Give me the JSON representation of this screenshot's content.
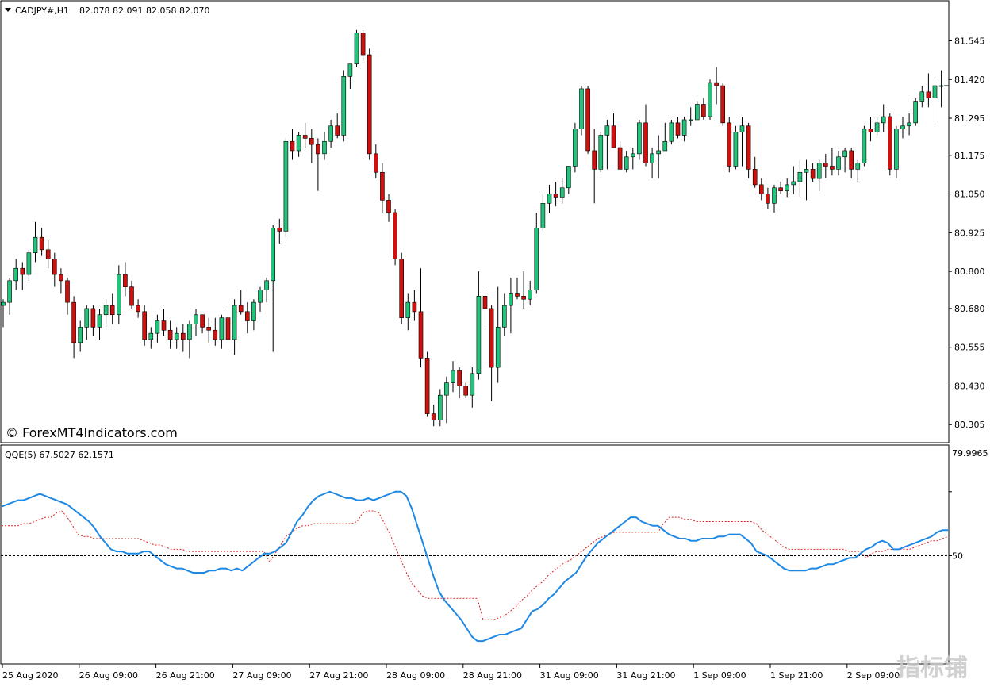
{
  "main": {
    "header": {
      "symbol": "CADJPY#,H1",
      "ohlc": "82.078 82.091 82.058 82.070"
    },
    "watermark": "© ForexMT4Indicators.com",
    "price_ticks": [
      "81.545",
      "81.420",
      "81.295",
      "81.175",
      "81.050",
      "80.925",
      "80.800",
      "80.680",
      "80.555",
      "80.430",
      "80.305"
    ]
  },
  "indicator": {
    "header": "QQE(5) 67.5027 62.1571",
    "ticks": [
      "79.9965",
      "50"
    ]
  },
  "time_labels": [
    "25 Aug 2020",
    "26 Aug 09:00",
    "26 Aug 21:00",
    "27 Aug 09:00",
    "27 Aug 21:00",
    "28 Aug 09:00",
    "28 Aug 21:00",
    "31 Aug 09:00",
    "31 Aug 21:00",
    "1 Sep 09:00",
    "1 Sep 21:00",
    "2 Sep 09:00"
  ],
  "corner_logo": "指标铺",
  "colors": {
    "bull": "#22c37a",
    "bear": "#d0100c",
    "qqe_fast": "#1e88e5",
    "qqe_slow": "#e02020",
    "axis": "#000000"
  },
  "chart_data": [
    {
      "type": "candlestick",
      "title": "CADJPY#,H1",
      "ylim": [
        80.28,
        81.6
      ],
      "ohlc": [
        [
          80.69,
          80.71,
          80.62,
          80.7
        ],
        [
          80.7,
          80.78,
          80.66,
          80.77
        ],
        [
          80.77,
          80.84,
          80.74,
          80.81
        ],
        [
          80.81,
          80.83,
          80.74,
          80.79
        ],
        [
          80.79,
          80.87,
          80.77,
          80.86
        ],
        [
          80.86,
          80.96,
          80.83,
          80.91
        ],
        [
          80.91,
          80.94,
          80.85,
          80.87
        ],
        [
          80.87,
          80.9,
          80.81,
          80.84
        ],
        [
          80.84,
          80.86,
          80.75,
          80.79
        ],
        [
          80.79,
          80.81,
          80.73,
          80.77
        ],
        [
          80.77,
          80.78,
          80.66,
          80.7
        ],
        [
          80.7,
          80.72,
          80.52,
          80.57
        ],
        [
          80.57,
          80.64,
          80.54,
          80.62
        ],
        [
          80.62,
          80.69,
          80.58,
          80.68
        ],
        [
          80.68,
          80.69,
          80.59,
          80.62
        ],
        [
          80.62,
          80.68,
          80.58,
          80.66
        ],
        [
          80.66,
          80.71,
          80.62,
          80.69
        ],
        [
          80.69,
          80.73,
          80.63,
          80.66
        ],
        [
          80.66,
          80.82,
          80.63,
          80.79
        ],
        [
          80.79,
          80.83,
          80.72,
          80.75
        ],
        [
          80.75,
          80.77,
          80.68,
          80.69
        ],
        [
          80.69,
          80.71,
          80.65,
          80.67
        ],
        [
          80.67,
          80.69,
          80.56,
          80.58
        ],
        [
          80.58,
          80.62,
          80.55,
          80.6
        ],
        [
          80.6,
          80.66,
          80.57,
          80.64
        ],
        [
          80.64,
          80.68,
          80.59,
          80.61
        ],
        [
          80.61,
          80.64,
          80.55,
          80.58
        ],
        [
          80.58,
          80.62,
          80.55,
          80.6
        ],
        [
          80.6,
          80.63,
          80.54,
          80.58
        ],
        [
          80.58,
          80.64,
          80.52,
          80.63
        ],
        [
          80.63,
          80.68,
          80.59,
          80.66
        ],
        [
          80.66,
          80.66,
          80.6,
          80.62
        ],
        [
          80.62,
          80.65,
          80.57,
          80.61
        ],
        [
          80.61,
          80.65,
          80.56,
          80.58
        ],
        [
          80.58,
          80.66,
          80.55,
          80.65
        ],
        [
          80.65,
          80.68,
          80.59,
          80.58
        ],
        [
          80.58,
          80.71,
          80.53,
          80.69
        ],
        [
          80.69,
          80.74,
          80.66,
          80.67
        ],
        [
          80.67,
          80.7,
          80.6,
          80.64
        ],
        [
          80.64,
          80.71,
          80.61,
          80.7
        ],
        [
          80.7,
          80.75,
          80.67,
          80.74
        ],
        [
          80.74,
          80.78,
          80.7,
          80.77
        ],
        [
          80.77,
          80.95,
          80.54,
          80.94
        ],
        [
          80.94,
          80.97,
          80.89,
          80.93
        ],
        [
          80.93,
          81.23,
          80.91,
          81.22
        ],
        [
          81.22,
          81.26,
          81.16,
          81.19
        ],
        [
          81.19,
          81.25,
          81.17,
          81.24
        ],
        [
          81.24,
          81.28,
          81.2,
          81.23
        ],
        [
          81.23,
          81.26,
          81.15,
          81.21
        ],
        [
          81.21,
          81.23,
          81.06,
          81.18
        ],
        [
          81.18,
          81.25,
          81.16,
          81.22
        ],
        [
          81.22,
          81.29,
          81.2,
          81.27
        ],
        [
          81.27,
          81.31,
          81.23,
          81.24
        ],
        [
          81.24,
          81.45,
          81.22,
          81.43
        ],
        [
          81.43,
          81.47,
          81.39,
          81.47
        ],
        [
          81.47,
          81.58,
          81.46,
          81.57
        ],
        [
          81.57,
          81.58,
          81.48,
          81.5
        ],
        [
          81.5,
          81.52,
          81.16,
          81.18
        ],
        [
          81.18,
          81.21,
          81.1,
          81.12
        ],
        [
          81.12,
          81.15,
          80.99,
          81.03
        ],
        [
          81.03,
          81.05,
          80.96,
          80.99
        ],
        [
          80.99,
          81.0,
          80.82,
          80.84
        ],
        [
          80.84,
          80.86,
          80.63,
          80.65
        ],
        [
          80.65,
          80.73,
          80.61,
          80.7
        ],
        [
          80.7,
          80.74,
          80.64,
          80.67
        ],
        [
          80.67,
          80.81,
          80.49,
          80.52
        ],
        [
          80.52,
          80.54,
          80.33,
          80.34
        ],
        [
          80.34,
          80.37,
          80.3,
          80.32
        ],
        [
          80.32,
          80.42,
          80.3,
          80.4
        ],
        [
          80.4,
          80.46,
          80.31,
          80.44
        ],
        [
          80.44,
          80.51,
          80.41,
          80.48
        ],
        [
          80.48,
          80.49,
          80.39,
          80.43
        ],
        [
          80.43,
          80.44,
          80.39,
          80.4
        ],
        [
          80.4,
          80.49,
          80.36,
          80.47
        ],
        [
          80.47,
          80.8,
          80.45,
          80.72
        ],
        [
          80.72,
          80.74,
          80.62,
          80.68
        ],
        [
          80.68,
          80.69,
          80.38,
          80.49
        ],
        [
          80.49,
          80.75,
          80.44,
          80.62
        ],
        [
          80.62,
          80.73,
          80.59,
          80.69
        ],
        [
          80.69,
          80.78,
          80.6,
          80.73
        ],
        [
          80.73,
          80.78,
          80.71,
          80.72
        ],
        [
          80.72,
          80.8,
          80.68,
          80.71
        ],
        [
          80.71,
          80.77,
          80.69,
          80.74
        ],
        [
          80.74,
          80.99,
          80.73,
          80.94
        ],
        [
          80.94,
          81.05,
          80.93,
          81.02
        ],
        [
          81.02,
          81.08,
          80.99,
          81.05
        ],
        [
          81.05,
          81.09,
          81.01,
          81.04
        ],
        [
          81.04,
          81.1,
          81.02,
          81.07
        ],
        [
          81.07,
          81.14,
          81.05,
          81.14
        ],
        [
          81.14,
          81.28,
          81.12,
          81.26
        ],
        [
          81.26,
          81.4,
          81.24,
          81.39
        ],
        [
          81.39,
          81.4,
          81.18,
          81.19
        ],
        [
          81.19,
          81.26,
          81.02,
          81.13
        ],
        [
          81.13,
          81.25,
          81.12,
          81.24
        ],
        [
          81.24,
          81.29,
          81.13,
          81.27
        ],
        [
          81.27,
          81.31,
          81.2,
          81.2
        ],
        [
          81.2,
          81.22,
          81.13,
          81.13
        ],
        [
          81.13,
          81.19,
          81.12,
          81.17
        ],
        [
          81.17,
          81.2,
          81.13,
          81.18
        ],
        [
          81.18,
          81.29,
          81.16,
          81.28
        ],
        [
          81.28,
          81.34,
          81.14,
          81.15
        ],
        [
          81.15,
          81.2,
          81.1,
          81.18
        ],
        [
          81.18,
          81.24,
          81.1,
          81.19
        ],
        [
          81.19,
          81.28,
          81.19,
          81.22
        ],
        [
          81.22,
          81.29,
          81.21,
          81.28
        ],
        [
          81.28,
          81.3,
          81.23,
          81.24
        ],
        [
          81.24,
          81.3,
          81.22,
          81.29
        ],
        [
          81.29,
          81.33,
          81.27,
          81.29
        ],
        [
          81.29,
          81.35,
          81.29,
          81.34
        ],
        [
          81.34,
          81.36,
          81.29,
          81.3
        ],
        [
          81.3,
          81.42,
          81.29,
          81.41
        ],
        [
          81.41,
          81.46,
          81.34,
          81.4
        ],
        [
          81.4,
          81.41,
          81.27,
          81.28
        ],
        [
          81.28,
          81.3,
          81.12,
          81.14
        ],
        [
          81.14,
          81.27,
          81.13,
          81.25
        ],
        [
          81.25,
          81.3,
          81.14,
          81.27
        ],
        [
          81.27,
          81.28,
          81.1,
          81.13
        ],
        [
          81.13,
          81.17,
          81.07,
          81.08
        ],
        [
          81.08,
          81.1,
          81.03,
          81.05
        ],
        [
          81.05,
          81.07,
          81.0,
          81.02
        ],
        [
          81.02,
          81.08,
          80.99,
          81.07
        ],
        [
          81.07,
          81.09,
          81.05,
          81.06
        ],
        [
          81.06,
          81.1,
          81.04,
          81.08
        ],
        [
          81.08,
          81.14,
          81.05,
          81.09
        ],
        [
          81.09,
          81.16,
          81.04,
          81.12
        ],
        [
          81.12,
          81.16,
          81.03,
          81.13
        ],
        [
          81.13,
          81.15,
          81.09,
          81.1
        ],
        [
          81.1,
          81.16,
          81.06,
          81.15
        ],
        [
          81.15,
          81.18,
          81.1,
          81.14
        ],
        [
          81.14,
          81.2,
          81.11,
          81.13
        ],
        [
          81.13,
          81.19,
          81.11,
          81.17
        ],
        [
          81.17,
          81.2,
          81.12,
          81.19
        ],
        [
          81.19,
          81.2,
          81.1,
          81.13
        ],
        [
          81.13,
          81.16,
          81.09,
          81.15
        ],
        [
          81.15,
          81.27,
          81.14,
          81.26
        ],
        [
          81.26,
          81.3,
          81.22,
          81.25
        ],
        [
          81.25,
          81.3,
          81.24,
          81.28
        ],
        [
          81.28,
          81.34,
          81.25,
          81.3
        ],
        [
          81.3,
          81.31,
          81.11,
          81.13
        ],
        [
          81.13,
          81.27,
          81.1,
          81.26
        ],
        [
          81.26,
          81.3,
          81.23,
          81.27
        ],
        [
          81.27,
          81.31,
          81.24,
          81.28
        ],
        [
          81.28,
          81.36,
          81.27,
          81.35
        ],
        [
          81.35,
          81.4,
          81.33,
          81.38
        ],
        [
          81.38,
          81.44,
          81.33,
          81.36
        ],
        [
          81.36,
          81.43,
          81.28,
          81.4
        ],
        [
          81.4,
          81.45,
          81.33,
          81.4
        ]
      ]
    },
    {
      "type": "line",
      "title": "QQE(5)",
      "ylim": [
        0,
        100
      ],
      "levels": [
        50,
        79.9965
      ],
      "series": [
        {
          "name": "",
          "values": [
            73,
            74,
            75,
            76,
            76,
            77,
            78,
            79,
            78,
            77,
            76,
            75,
            74,
            72,
            70,
            68,
            66,
            63,
            59,
            56,
            53,
            52,
            52,
            51,
            51,
            51,
            52,
            52,
            50,
            48,
            46,
            45,
            44,
            44,
            43,
            42,
            42,
            42,
            43,
            43,
            44,
            44,
            43,
            44,
            43,
            45,
            47,
            49,
            51,
            51,
            52,
            54,
            56,
            61,
            66,
            69,
            73,
            76,
            78,
            79,
            80,
            79,
            78,
            77,
            77,
            76,
            76,
            77,
            76,
            77,
            78,
            79,
            80,
            80,
            78,
            72,
            64,
            56,
            48,
            40,
            33,
            29,
            26,
            23,
            20,
            16,
            12,
            10,
            10,
            11,
            12,
            13,
            13,
            14,
            15,
            16,
            20,
            24,
            25,
            27,
            30,
            32,
            35,
            38,
            40,
            42,
            46,
            50,
            53,
            56,
            58,
            60,
            62,
            64,
            66,
            68,
            68,
            66,
            65,
            64,
            64,
            62,
            60,
            59,
            58,
            58,
            57,
            57,
            58,
            58,
            58,
            59,
            59,
            60,
            60,
            60,
            58,
            56,
            52,
            51,
            50,
            48,
            46,
            44,
            43,
            43,
            43,
            43,
            44,
            44,
            45,
            46,
            46,
            47,
            48,
            49,
            49,
            51,
            53,
            54,
            56,
            57,
            56,
            53,
            53,
            54,
            55,
            56,
            57,
            58,
            59,
            61,
            62,
            62
          ]
        },
        {
          "name": "",
          "values": [
            64,
            64,
            64,
            64,
            65,
            65,
            66,
            67,
            68,
            68,
            70,
            71,
            68,
            64,
            60,
            59,
            59,
            58,
            58,
            58,
            58,
            58,
            58,
            58,
            58,
            58,
            57,
            56,
            55,
            55,
            54,
            53,
            53,
            53,
            52,
            52,
            52,
            52,
            52,
            52,
            52,
            52,
            52,
            52,
            52,
            52,
            52,
            52,
            52,
            47,
            51,
            55,
            59,
            61,
            63,
            64,
            64,
            65,
            65,
            65,
            65,
            65,
            65,
            65,
            65,
            66,
            70,
            71,
            71,
            70,
            65,
            60,
            54,
            48,
            42,
            37,
            34,
            31,
            30,
            30,
            30,
            30,
            30,
            30,
            30,
            30,
            30,
            30,
            20,
            20,
            20,
            21,
            22,
            24,
            26,
            29,
            31,
            34,
            36,
            38,
            41,
            43,
            45,
            47,
            48,
            50,
            52,
            54,
            56,
            58,
            59,
            60,
            61,
            61,
            61,
            61,
            61,
            61,
            61,
            61,
            61,
            65,
            68,
            68,
            68,
            67,
            67,
            66,
            66,
            66,
            66,
            66,
            66,
            66,
            66,
            66,
            66,
            66,
            65,
            62,
            60,
            58,
            56,
            54,
            53,
            53,
            53,
            53,
            53,
            53,
            53,
            53,
            53,
            53,
            53,
            52,
            52,
            52,
            49,
            51,
            52,
            52,
            53,
            53,
            53,
            53,
            53,
            54,
            55,
            56,
            57,
            57,
            58,
            59
          ]
        }
      ]
    }
  ]
}
